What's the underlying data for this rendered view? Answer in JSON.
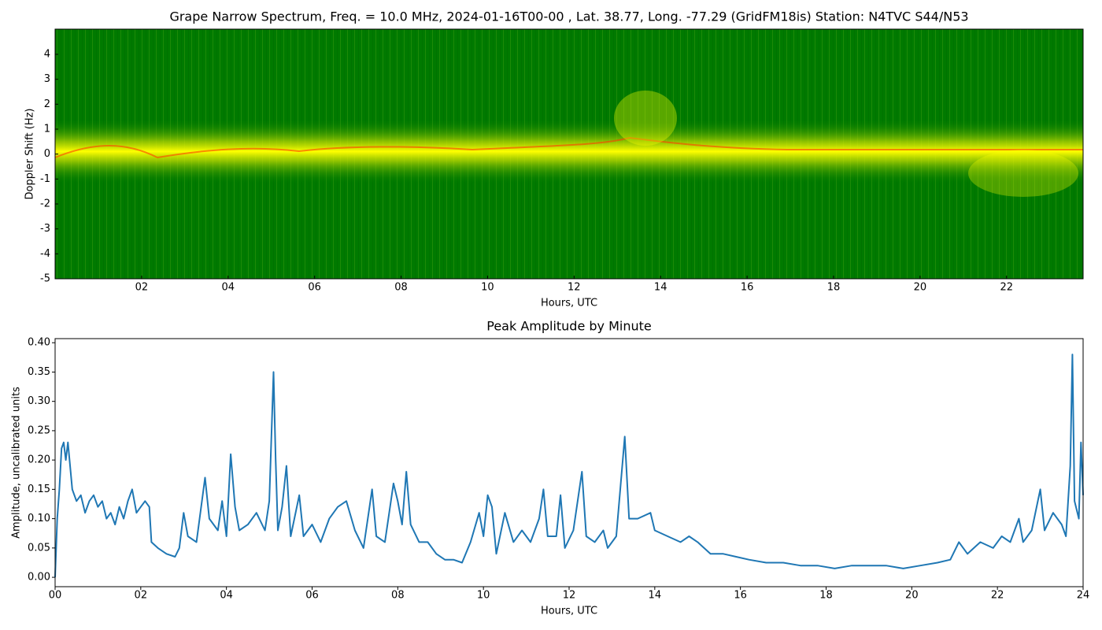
{
  "chart_data": [
    {
      "type": "spectrogram",
      "title": "Grape Narrow Spectrum, Freq. = 10.0 MHz, 2024-01-16T00-00 , Lat.  38.77, Long. -77.29 (GridFM18is) Station: N4TVC S44/N53",
      "xlabel": "Hours, UTC",
      "ylabel": "Doppler Shift (Hz)",
      "xlim": [
        0,
        23.77
      ],
      "ylim": [
        -5,
        5.01
      ],
      "xticks": [
        {
          "value": 2,
          "label": "02"
        },
        {
          "value": 4,
          "label": "04"
        },
        {
          "value": 6,
          "label": "06"
        },
        {
          "value": 8,
          "label": "08"
        },
        {
          "value": 10,
          "label": "10"
        },
        {
          "value": 12,
          "label": "12"
        },
        {
          "value": 14,
          "label": "14"
        },
        {
          "value": 16,
          "label": "16"
        },
        {
          "value": 18,
          "label": "18"
        },
        {
          "value": 20,
          "label": "20"
        },
        {
          "value": 22,
          "label": "22"
        }
      ],
      "yticks": [
        4,
        3,
        2,
        1,
        0,
        -1,
        -2,
        -3,
        -4,
        -5
      ]
    },
    {
      "type": "line",
      "title": "Peak Amplitude by Minute",
      "xlabel": "Hours, UTC",
      "ylabel": "Amplitude, uncalibrated units",
      "xlim": [
        0,
        24
      ],
      "ylim": [
        -0.016,
        0.407
      ],
      "xticks": [
        {
          "value": 0,
          "label": "00"
        },
        {
          "value": 2,
          "label": "02"
        },
        {
          "value": 4,
          "label": "04"
        },
        {
          "value": 6,
          "label": "06"
        },
        {
          "value": 8,
          "label": "08"
        },
        {
          "value": 10,
          "label": "10"
        },
        {
          "value": 12,
          "label": "12"
        },
        {
          "value": 14,
          "label": "14"
        },
        {
          "value": 16,
          "label": "16"
        },
        {
          "value": 18,
          "label": "18"
        },
        {
          "value": 20,
          "label": "20"
        },
        {
          "value": 22,
          "label": "22"
        },
        {
          "value": 24,
          "label": "24"
        }
      ],
      "yticks": [
        {
          "value": 0,
          "label": "0.00"
        },
        {
          "value": 0.05,
          "label": "0.05"
        },
        {
          "value": 0.1,
          "label": "0.10"
        },
        {
          "value": 0.15,
          "label": "0.15"
        },
        {
          "value": 0.2,
          "label": "0.20"
        },
        {
          "value": 0.25,
          "label": "0.25"
        },
        {
          "value": 0.3,
          "label": "0.30"
        },
        {
          "value": 0.35,
          "label": "0.35"
        },
        {
          "value": 0.4,
          "label": "0.40"
        }
      ],
      "series": [
        {
          "color": "#1f77b4",
          "x": [
            0.0,
            0.05,
            0.1,
            0.15,
            0.2,
            0.25,
            0.3,
            0.4,
            0.5,
            0.6,
            0.7,
            0.8,
            0.9,
            1.0,
            1.1,
            1.2,
            1.3,
            1.4,
            1.5,
            1.6,
            1.7,
            1.8,
            1.9,
            2.0,
            2.1,
            2.2,
            2.25,
            2.4,
            2.6,
            2.8,
            2.9,
            3.0,
            3.1,
            3.3,
            3.5,
            3.6,
            3.8,
            3.9,
            4.0,
            4.1,
            4.2,
            4.3,
            4.5,
            4.7,
            4.9,
            5.0,
            5.1,
            5.15,
            5.2,
            5.3,
            5.4,
            5.5,
            5.7,
            5.8,
            6.0,
            6.2,
            6.4,
            6.6,
            6.8,
            7.0,
            7.2,
            7.4,
            7.5,
            7.7,
            7.9,
            8.0,
            8.1,
            8.2,
            8.3,
            8.5,
            8.7,
            8.9,
            9.1,
            9.3,
            9.5,
            9.7,
            9.9,
            10.0,
            10.1,
            10.2,
            10.3,
            10.5,
            10.7,
            10.9,
            11.1,
            11.3,
            11.4,
            11.5,
            11.7,
            11.8,
            11.9,
            12.1,
            12.3,
            12.4,
            12.6,
            12.8,
            12.9,
            13.1,
            13.3,
            13.4,
            13.6,
            13.9,
            14.0,
            14.3,
            14.6,
            14.8,
            15.0,
            15.3,
            15.6,
            15.9,
            16.2,
            16.6,
            17.0,
            17.4,
            17.8,
            18.2,
            18.6,
            19.0,
            19.4,
            19.8,
            20.2,
            20.6,
            20.9,
            21.1,
            21.3,
            21.6,
            21.9,
            22.1,
            22.3,
            22.5,
            22.6,
            22.8,
            23.0,
            23.1,
            23.3,
            23.5,
            23.6,
            23.7,
            23.75,
            23.8,
            23.9,
            23.95,
            24.0
          ],
          "values": [
            0.0,
            0.1,
            0.15,
            0.22,
            0.23,
            0.2,
            0.23,
            0.15,
            0.13,
            0.14,
            0.11,
            0.13,
            0.14,
            0.12,
            0.13,
            0.1,
            0.11,
            0.09,
            0.12,
            0.1,
            0.13,
            0.15,
            0.11,
            0.12,
            0.13,
            0.12,
            0.06,
            0.05,
            0.04,
            0.035,
            0.05,
            0.11,
            0.07,
            0.06,
            0.17,
            0.1,
            0.08,
            0.13,
            0.07,
            0.21,
            0.12,
            0.08,
            0.09,
            0.11,
            0.08,
            0.13,
            0.35,
            0.2,
            0.08,
            0.12,
            0.19,
            0.07,
            0.14,
            0.07,
            0.09,
            0.06,
            0.1,
            0.12,
            0.13,
            0.08,
            0.05,
            0.15,
            0.07,
            0.06,
            0.16,
            0.13,
            0.09,
            0.18,
            0.09,
            0.06,
            0.06,
            0.04,
            0.03,
            0.03,
            0.025,
            0.06,
            0.11,
            0.07,
            0.14,
            0.12,
            0.04,
            0.11,
            0.06,
            0.08,
            0.06,
            0.1,
            0.15,
            0.07,
            0.07,
            0.14,
            0.05,
            0.08,
            0.18,
            0.07,
            0.06,
            0.08,
            0.05,
            0.07,
            0.24,
            0.1,
            0.1,
            0.11,
            0.08,
            0.07,
            0.06,
            0.07,
            0.06,
            0.04,
            0.04,
            0.035,
            0.03,
            0.025,
            0.025,
            0.02,
            0.02,
            0.015,
            0.02,
            0.02,
            0.02,
            0.015,
            0.02,
            0.025,
            0.03,
            0.06,
            0.04,
            0.06,
            0.05,
            0.07,
            0.06,
            0.1,
            0.06,
            0.08,
            0.15,
            0.08,
            0.11,
            0.09,
            0.07,
            0.19,
            0.38,
            0.13,
            0.1,
            0.23,
            0.14
          ]
        }
      ]
    }
  ]
}
